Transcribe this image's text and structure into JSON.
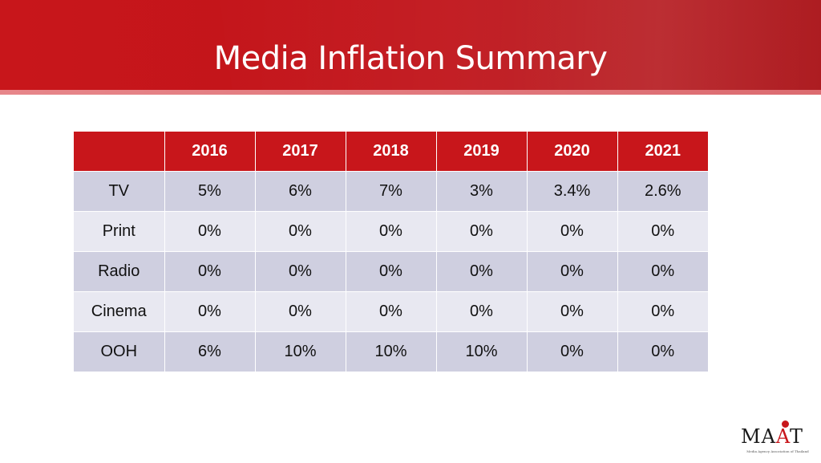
{
  "slide": {
    "title": "Media Inflation Summary"
  },
  "colors": {
    "header_red": "#c8161b",
    "row_dark": "#cfcfe0",
    "row_light": "#e8e8f1"
  },
  "table": {
    "corner": "",
    "years": [
      "2016",
      "2017",
      "2018",
      "2019",
      "2020",
      "2021"
    ],
    "rows": [
      {
        "label": "TV",
        "values": [
          "5%",
          "6%",
          "7%",
          "3%",
          "3.4%",
          "2.6%"
        ]
      },
      {
        "label": "Print",
        "values": [
          "0%",
          "0%",
          "0%",
          "0%",
          "0%",
          "0%"
        ]
      },
      {
        "label": "Radio",
        "values": [
          "0%",
          "0%",
          "0%",
          "0%",
          "0%",
          "0%"
        ]
      },
      {
        "label": "Cinema",
        "values": [
          "0%",
          "0%",
          "0%",
          "0%",
          "0%",
          "0%"
        ]
      },
      {
        "label": "OOH",
        "values": [
          "6%",
          "10%",
          "10%",
          "10%",
          "0%",
          "0%"
        ]
      }
    ]
  },
  "logo": {
    "text_left": "MA",
    "text_red": "A",
    "text_right": "T",
    "tagline": "Media Agency Association of Thailand"
  }
}
